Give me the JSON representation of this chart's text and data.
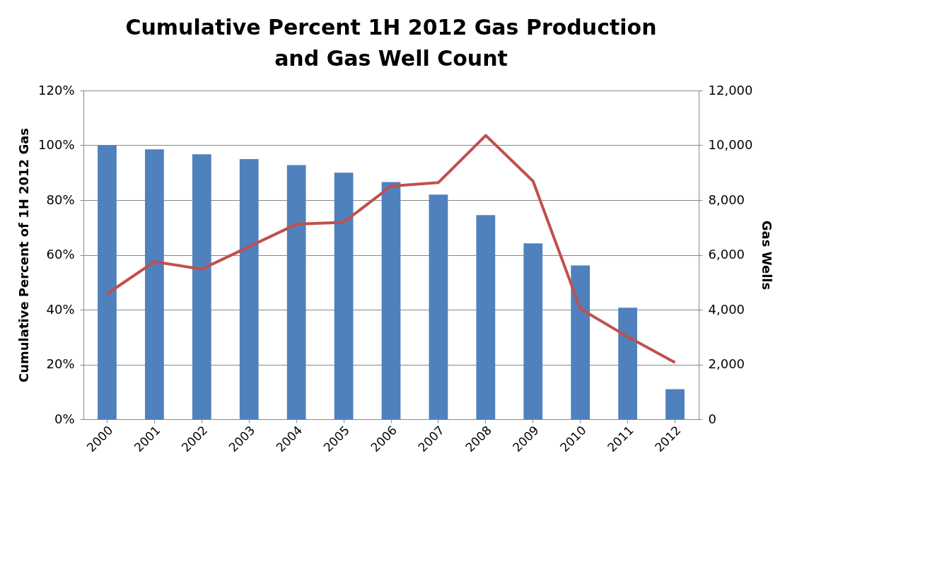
{
  "chart_data": {
    "type": "bar",
    "title": "Cumulative Percent 1H 2012 Gas Production and Gas Well Count",
    "categories": [
      "2000",
      "2001",
      "2002",
      "2003",
      "2004",
      "2005",
      "2006",
      "2007",
      "2008",
      "2009",
      "2010",
      "2011",
      "2012"
    ],
    "series": [
      {
        "color": "#4f81bd",
        "values": [
          100,
          98.5,
          96.7,
          95,
          92.8,
          90,
          86.6,
          82,
          74.5,
          64.2,
          56.1,
          40.7,
          11
        ]
      },
      {
        "type": "line",
        "axis": "y2",
        "color": "#c0504d",
        "values": [
          4580,
          5750,
          5480,
          6300,
          7120,
          7190,
          8510,
          8640,
          10360,
          8690,
          4030,
          3010,
          2070
        ]
      }
    ],
    "ylabel": "Cumulative Percent of 1H 2012 Gas",
    "y2label": "Gas Wells",
    "ylim": [
      0,
      120
    ],
    "yticks": [
      {
        "value": 0,
        "label": "0%"
      },
      {
        "value": 20,
        "label": "20%"
      },
      {
        "value": 40,
        "label": "40%"
      },
      {
        "value": 60,
        "label": "60%"
      },
      {
        "value": 80,
        "label": "80%"
      },
      {
        "value": 100,
        "label": "100%"
      },
      {
        "value": 120,
        "label": "120%"
      }
    ],
    "y2lim": [
      0,
      12000
    ],
    "y2ticks": [
      {
        "value": 0,
        "label": "0"
      },
      {
        "value": 2000,
        "label": "2,000"
      },
      {
        "value": 4000,
        "label": "4,000"
      },
      {
        "value": 6000,
        "label": "6,000"
      },
      {
        "value": 8000,
        "label": "8,000"
      },
      {
        "value": 10000,
        "label": "10,000"
      },
      {
        "value": 12000,
        "label": "12,000"
      }
    ],
    "grid": "y"
  }
}
